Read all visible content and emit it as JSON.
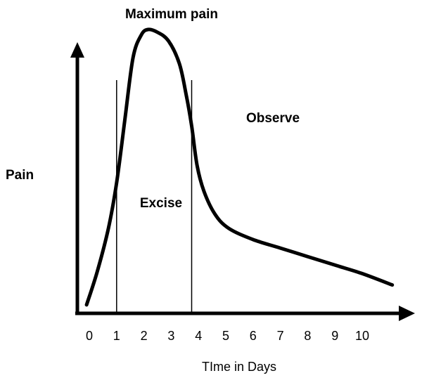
{
  "chart_data": {
    "type": "line",
    "xlabel": "TIme in Days",
    "ylabel": "Pain",
    "x_ticks": [
      "0",
      "1",
      "2",
      "3",
      "4",
      "5",
      "6",
      "7",
      "8",
      "9",
      "10"
    ],
    "xlim": [
      -0.1,
      11.1
    ],
    "ylim": [
      0,
      100
    ],
    "y_axis_ticks_shown": false,
    "grid": false,
    "legend": "none",
    "line_color": "#000000",
    "series": [
      {
        "x": [
          -0.1,
          0.3,
          0.7,
          1.0,
          1.3,
          1.6,
          1.9,
          2.15,
          2.5,
          2.9,
          3.3,
          3.55,
          3.75,
          3.95,
          4.2,
          4.6,
          5.1,
          6,
          7,
          8,
          9,
          10,
          11.1
        ],
        "y": [
          3,
          15,
          30,
          46,
          68,
          90,
          98,
          100,
          99,
          96,
          88,
          77,
          66,
          52,
          43,
          35,
          30,
          26,
          23,
          20,
          17,
          14,
          10
        ]
      }
    ],
    "vertical_markers": [
      1.0,
      3.75
    ],
    "annotations": {
      "peak": "Maximum pain",
      "between_markers": "Excise",
      "after_marker": "Observe"
    }
  }
}
